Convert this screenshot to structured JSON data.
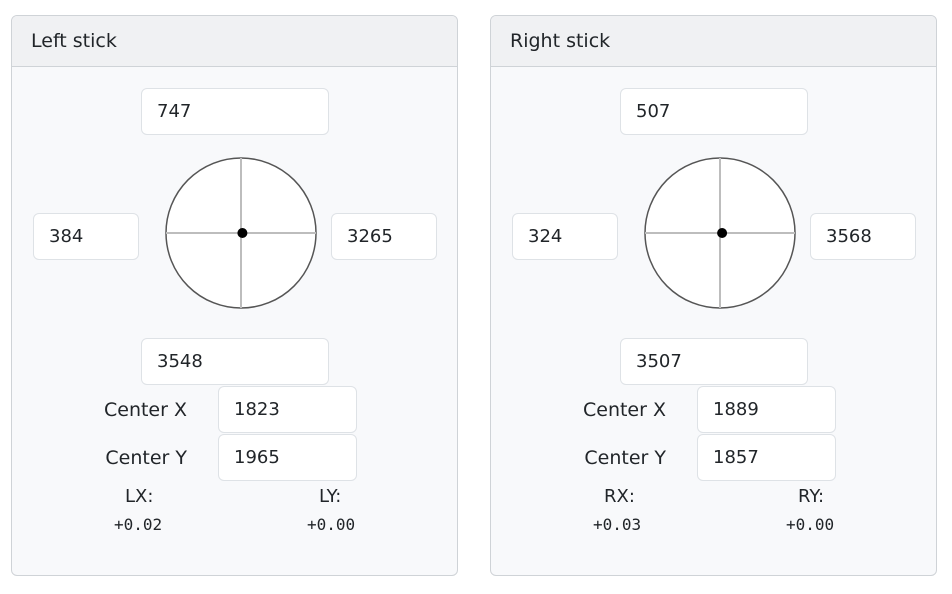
{
  "left_stick": {
    "title": "Left stick",
    "top_value": "747",
    "left_value": "384",
    "right_value": "3265",
    "bottom_value": "3548",
    "center_x_label": "Center X",
    "center_x_value": "1823",
    "center_y_label": "Center Y",
    "center_y_value": "1965",
    "axis_x_label": "LX:",
    "axis_x_value": "+0.02",
    "axis_y_label": "LY:",
    "axis_y_value": "+0.00"
  },
  "right_stick": {
    "title": "Right stick",
    "top_value": "507",
    "left_value": "324",
    "right_value": "3568",
    "bottom_value": "3507",
    "center_x_label": "Center X",
    "center_x_value": "1889",
    "center_y_label": "Center Y",
    "center_y_value": "1857",
    "axis_x_label": "RX:",
    "axis_x_value": "+0.03",
    "axis_y_label": "RY:",
    "axis_y_value": "+0.00"
  },
  "colors": {
    "panel_bg": "#f8f9fb",
    "header_bg": "#f0f1f3",
    "border": "#cfd3d7",
    "crosshair": "#bdbdbd",
    "circle_outline": "#555555",
    "dot": "#000000"
  }
}
